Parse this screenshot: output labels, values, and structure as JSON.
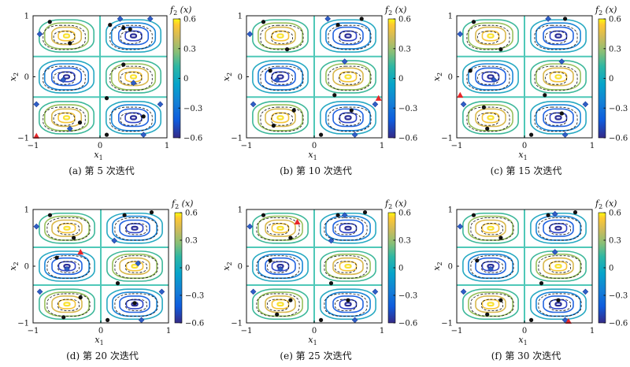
{
  "chart_data": [
    {
      "type": "heatmap",
      "caption": "(a) 第 5 次迭代",
      "xlabel": "x1",
      "ylabel": "x2",
      "colorbar_label": "f2 (x)",
      "xlim": [
        -1,
        1
      ],
      "ylim": [
        -1,
        1
      ],
      "clim": [
        -0.6,
        0.6
      ],
      "xticks": [
        "−1",
        "0",
        "1"
      ],
      "yticks": [
        "−1",
        "0",
        "1"
      ],
      "colorbar_ticks": [
        "0.6",
        "0.3",
        "0",
        "−0.3",
        "−0.6"
      ],
      "black_points": [
        [
          -0.75,
          0.9
        ],
        [
          -0.45,
          0.55
        ],
        [
          0.15,
          0.85
        ],
        [
          0.45,
          0.78
        ],
        [
          0.35,
          0.2
        ],
        [
          0.1,
          -0.35
        ],
        [
          -0.3,
          -0.75
        ],
        [
          0.1,
          -0.95
        ],
        [
          0.65,
          -0.65
        ],
        [
          0.35,
          0.8
        ]
      ],
      "blue_points": [
        [
          -0.9,
          0.7
        ],
        [
          0.3,
          0.95
        ],
        [
          0.75,
          0.95
        ],
        [
          -0.95,
          -0.45
        ],
        [
          0.9,
          -0.45
        ],
        [
          -0.55,
          -0.05
        ],
        [
          0.5,
          -0.1
        ],
        [
          -0.45,
          -0.85
        ],
        [
          0.65,
          -0.95
        ]
      ],
      "red_points": [
        [
          -0.95,
          -0.97
        ]
      ]
    },
    {
      "type": "heatmap",
      "caption": "(b) 第 10 次迭代",
      "xlabel": "x1",
      "ylabel": "x2",
      "colorbar_label": "f2 (x)",
      "xlim": [
        -1,
        1
      ],
      "ylim": [
        -1,
        1
      ],
      "clim": [
        -0.6,
        0.6
      ],
      "xticks": [
        "−1",
        "0",
        "1"
      ],
      "yticks": [
        "−1",
        "0",
        "1"
      ],
      "colorbar_ticks": [
        "0.6",
        "0.3",
        "0",
        "−0.3",
        "−0.6"
      ],
      "black_points": [
        [
          -0.75,
          0.9
        ],
        [
          -0.4,
          0.45
        ],
        [
          0.35,
          0.85
        ],
        [
          0.7,
          0.95
        ],
        [
          -0.65,
          0.1
        ],
        [
          0.3,
          -0.3
        ],
        [
          -0.3,
          -0.55
        ],
        [
          0.1,
          -0.95
        ],
        [
          0.55,
          -0.55
        ],
        [
          -0.6,
          -0.8
        ]
      ],
      "blue_points": [
        [
          -0.95,
          0.7
        ],
        [
          0.2,
          0.95
        ],
        [
          -0.9,
          -0.45
        ],
        [
          0.9,
          -0.45
        ],
        [
          0.45,
          0.25
        ],
        [
          -0.55,
          -0.05
        ],
        [
          0.6,
          -0.95
        ]
      ],
      "red_points": [
        [
          0.95,
          -0.35
        ]
      ]
    },
    {
      "type": "heatmap",
      "caption": "(c) 第 15 次迭代",
      "xlabel": "x1",
      "ylabel": "x2",
      "colorbar_label": "f2 (x)",
      "xlim": [
        -1,
        1
      ],
      "ylim": [
        -1,
        1
      ],
      "clim": [
        -0.6,
        0.6
      ],
      "xticks": [
        "−1",
        "0",
        "1"
      ],
      "yticks": [
        "−1",
        "0",
        "1"
      ],
      "colorbar_ticks": [
        "0.6",
        "0.3",
        "0",
        "−0.3",
        "−0.6"
      ],
      "black_points": [
        [
          -0.75,
          0.9
        ],
        [
          -0.35,
          0.45
        ],
        [
          0.6,
          0.95
        ],
        [
          -0.8,
          0.1
        ],
        [
          0.3,
          -0.3
        ],
        [
          -0.6,
          -0.5
        ],
        [
          0.1,
          -0.95
        ],
        [
          0.55,
          -0.6
        ],
        [
          -0.55,
          -0.85
        ]
      ],
      "blue_points": [
        [
          -0.95,
          0.7
        ],
        [
          0.35,
          0.95
        ],
        [
          -0.9,
          -0.45
        ],
        [
          0.9,
          -0.45
        ],
        [
          0.55,
          0.25
        ],
        [
          -0.45,
          -0.05
        ],
        [
          0.6,
          -0.95
        ]
      ],
      "red_points": [
        [
          -0.95,
          -0.3
        ]
      ]
    },
    {
      "type": "heatmap",
      "caption": "(d) 第 20 次迭代",
      "xlabel": "x1",
      "ylabel": "x2",
      "colorbar_label": "f2 (x)",
      "xlim": [
        -1,
        1
      ],
      "ylim": [
        -1,
        1
      ],
      "clim": [
        -0.6,
        0.6
      ],
      "xticks": [
        "−1",
        "0",
        "1"
      ],
      "yticks": [
        "−1",
        "0",
        "1"
      ],
      "colorbar_ticks": [
        "0.6",
        "0.3",
        "0",
        "−0.3",
        "−0.6"
      ],
      "black_points": [
        [
          -0.75,
          0.9
        ],
        [
          -0.4,
          0.5
        ],
        [
          0.35,
          0.9
        ],
        [
          0.75,
          0.95
        ],
        [
          -0.65,
          0.15
        ],
        [
          0.25,
          -0.3
        ],
        [
          -0.3,
          -0.55
        ],
        [
          0.1,
          -0.95
        ],
        [
          0.5,
          -0.65
        ],
        [
          -0.55,
          -0.9
        ]
      ],
      "blue_points": [
        [
          -0.95,
          0.7
        ],
        [
          0.2,
          0.45
        ],
        [
          -0.9,
          -0.45
        ],
        [
          0.9,
          -0.45
        ],
        [
          0.55,
          0.05
        ],
        [
          -0.5,
          -0.05
        ],
        [
          0.6,
          -0.95
        ]
      ],
      "red_points": [
        [
          -0.3,
          0.25
        ]
      ]
    },
    {
      "type": "heatmap",
      "caption": "(e) 第 25 次迭代",
      "xlabel": "x1",
      "ylabel": "x2",
      "colorbar_label": "f2 (x)",
      "xlim": [
        -1,
        1
      ],
      "ylim": [
        -1,
        1
      ],
      "clim": [
        -0.6,
        0.6
      ],
      "xticks": [
        "−1",
        "0",
        "1"
      ],
      "yticks": [
        "−1",
        "0",
        "1"
      ],
      "colorbar_ticks": [
        "0.6",
        "0.3",
        "0",
        "−0.3",
        "−0.6"
      ],
      "black_points": [
        [
          -0.75,
          0.9
        ],
        [
          -0.35,
          0.5
        ],
        [
          0.35,
          0.9
        ],
        [
          0.75,
          0.95
        ],
        [
          -0.65,
          0.1
        ],
        [
          0.25,
          -0.3
        ],
        [
          -0.35,
          -0.6
        ],
        [
          0.1,
          -0.95
        ],
        [
          0.5,
          -0.6
        ],
        [
          -0.55,
          -0.85
        ]
      ],
      "blue_points": [
        [
          -0.95,
          0.7
        ],
        [
          0.45,
          0.9
        ],
        [
          -0.9,
          -0.45
        ],
        [
          0.9,
          -0.45
        ],
        [
          0.25,
          0.45
        ],
        [
          -0.5,
          -0.05
        ],
        [
          0.6,
          -0.95
        ]
      ],
      "red_points": [
        [
          -0.25,
          0.78
        ]
      ]
    },
    {
      "type": "heatmap",
      "caption": "(f) 第 30 次迭代",
      "xlabel": "x1",
      "ylabel": "x2",
      "colorbar_label": "f2 (x)",
      "xlim": [
        -1,
        1
      ],
      "ylim": [
        -1,
        1
      ],
      "clim": [
        -0.6,
        0.6
      ],
      "xticks": [
        "−1",
        "0",
        "1"
      ],
      "yticks": [
        "−1",
        "0",
        "1"
      ],
      "colorbar_ticks": [
        "0.6",
        "0.3",
        "0",
        "−0.3",
        "−0.6"
      ],
      "black_points": [
        [
          -0.75,
          0.9
        ],
        [
          -0.35,
          0.5
        ],
        [
          0.35,
          0.9
        ],
        [
          0.75,
          0.95
        ],
        [
          -0.7,
          0.1
        ],
        [
          0.25,
          -0.3
        ],
        [
          -0.35,
          -0.6
        ],
        [
          0.1,
          -0.95
        ],
        [
          0.5,
          -0.6
        ],
        [
          -0.55,
          -0.85
        ]
      ],
      "blue_points": [
        [
          -0.95,
          0.7
        ],
        [
          0.45,
          0.92
        ],
        [
          -0.9,
          -0.45
        ],
        [
          0.9,
          -0.45
        ],
        [
          0.45,
          0.25
        ],
        [
          -0.5,
          -0.05
        ],
        [
          0.6,
          -0.95
        ]
      ],
      "red_points": [
        [
          0.65,
          -0.97
        ]
      ]
    }
  ]
}
